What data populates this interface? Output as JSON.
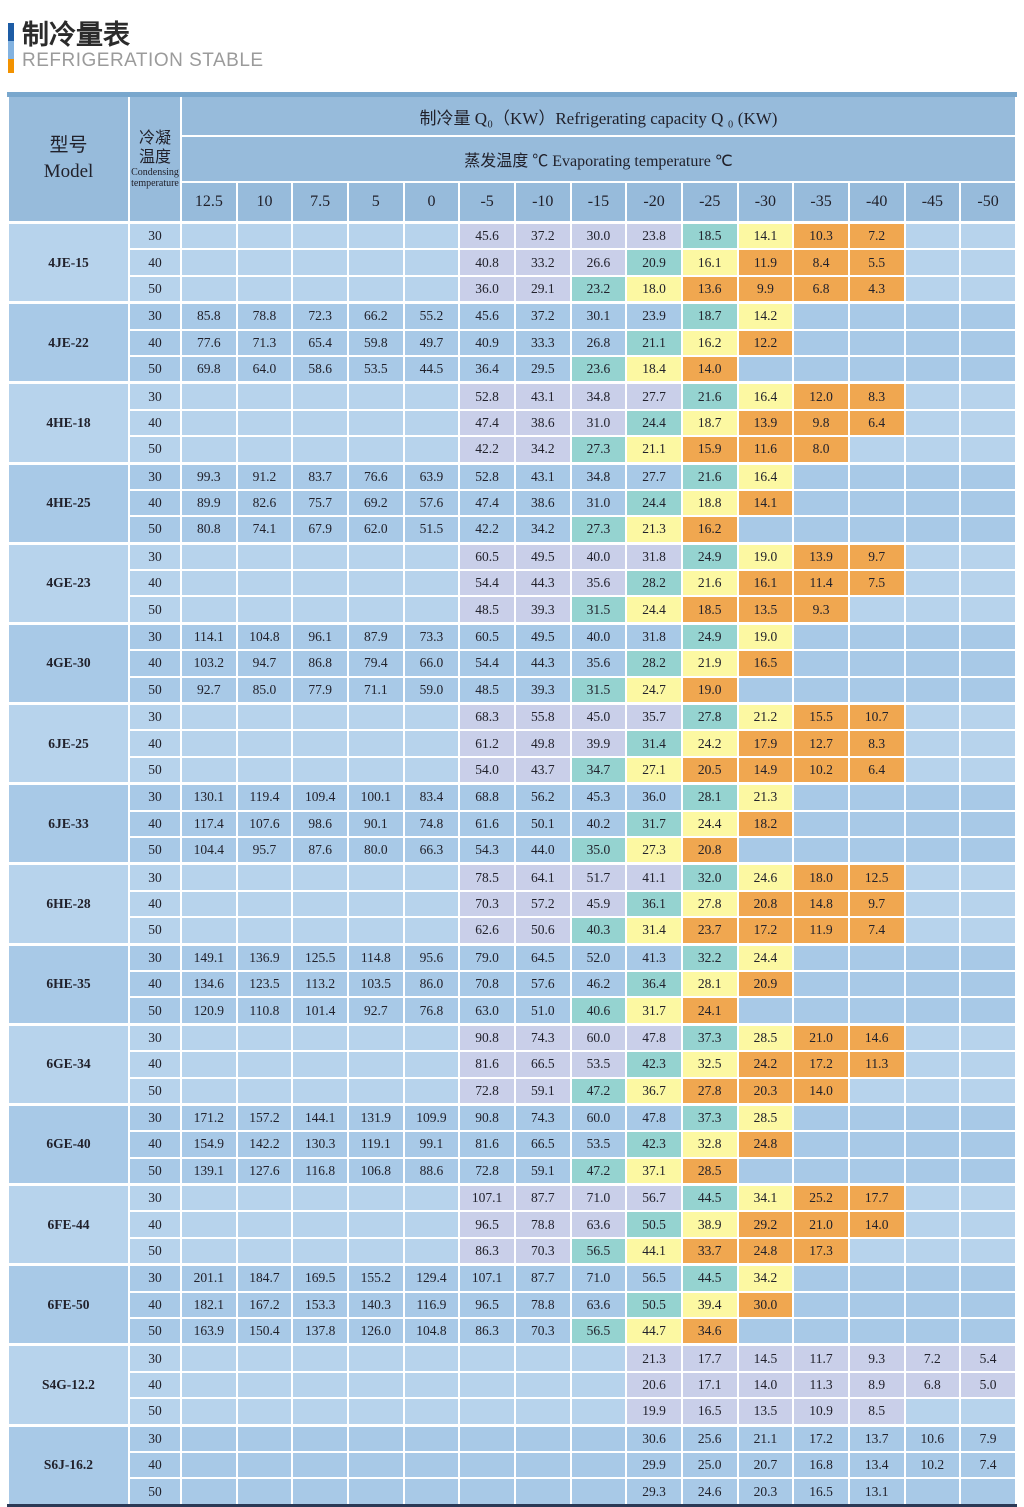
{
  "page": {
    "title": "制冷量表",
    "subtitle": "REFRIGERATION STABLE"
  },
  "colors": {
    "header_blue": "#97bbdb",
    "evaporating_row_blue": "#cde9f8",
    "top_strip_blue": "#79a7cd",
    "group_base_light": "#b7d3ec",
    "group_base_dark": "#a8c9e7",
    "band_lavender": "#c9cfe9",
    "band_teal": "#95d3d0",
    "band_yellow": "#fcf8a2",
    "band_orange": "#f0a750",
    "accent_dark_blue": "#1d5ca5",
    "accent_light_blue": "#82b2e0",
    "accent_orange": "#f29200"
  },
  "table": {
    "header": {
      "model_zh": "型号",
      "model_en": "Model",
      "cond_zh_line1": "冷凝",
      "cond_zh_line2": "温度",
      "cond_en_line1": "Condensing",
      "cond_en_line2": "temperature",
      "capacity_title": "制冷量 Q₀（KW）Refrigerating capacity Q ₀ (KW)",
      "evap_title": "蒸发温度 ℃ Evaporating temperature ℃",
      "temp_columns": [
        "12.5",
        "10",
        "7.5",
        "5",
        "0",
        "-5",
        "-10",
        "-15",
        "-20",
        "-25",
        "-30",
        "-35",
        "-40",
        "-45",
        "-50"
      ]
    },
    "cond_values": [
      "30",
      "40",
      "50"
    ],
    "models": [
      {
        "name": "4JE-15",
        "shade": "light",
        "heat": true,
        "rows": [
          [
            "",
            "",
            "",
            "",
            "",
            "45.6",
            "37.2",
            "30.0",
            "23.8",
            "18.5",
            "14.1",
            "10.3",
            "7.2",
            "",
            ""
          ],
          [
            "",
            "",
            "",
            "",
            "",
            "40.8",
            "33.2",
            "26.6",
            "20.9",
            "16.1",
            "11.9",
            "8.4",
            "5.5",
            "",
            ""
          ],
          [
            "",
            "",
            "",
            "",
            "",
            "36.0",
            "29.1",
            "23.2",
            "18.0",
            "13.6",
            "9.9",
            "6.8",
            "4.3",
            "",
            ""
          ]
        ]
      },
      {
        "name": "4JE-22",
        "shade": "dark",
        "heat": true,
        "rows": [
          [
            "85.8",
            "78.8",
            "72.3",
            "66.2",
            "55.2",
            "45.6",
            "37.2",
            "30.1",
            "23.9",
            "18.7",
            "14.2",
            "",
            "",
            "",
            ""
          ],
          [
            "77.6",
            "71.3",
            "65.4",
            "59.8",
            "49.7",
            "40.9",
            "33.3",
            "26.8",
            "21.1",
            "16.2",
            "12.2",
            "",
            "",
            "",
            ""
          ],
          [
            "69.8",
            "64.0",
            "58.6",
            "53.5",
            "44.5",
            "36.4",
            "29.5",
            "23.6",
            "18.4",
            "14.0",
            "",
            "",
            "",
            "",
            ""
          ]
        ]
      },
      {
        "name": "4HE-18",
        "shade": "light",
        "heat": true,
        "rows": [
          [
            "",
            "",
            "",
            "",
            "",
            "52.8",
            "43.1",
            "34.8",
            "27.7",
            "21.6",
            "16.4",
            "12.0",
            "8.3",
            "",
            ""
          ],
          [
            "",
            "",
            "",
            "",
            "",
            "47.4",
            "38.6",
            "31.0",
            "24.4",
            "18.7",
            "13.9",
            "9.8",
            "6.4",
            "",
            ""
          ],
          [
            "",
            "",
            "",
            "",
            "",
            "42.2",
            "34.2",
            "27.3",
            "21.1",
            "15.9",
            "11.6",
            "8.0",
            "",
            "",
            ""
          ]
        ]
      },
      {
        "name": "4HE-25",
        "shade": "dark",
        "heat": true,
        "rows": [
          [
            "99.3",
            "91.2",
            "83.7",
            "76.6",
            "63.9",
            "52.8",
            "43.1",
            "34.8",
            "27.7",
            "21.6",
            "16.4",
            "",
            "",
            "",
            ""
          ],
          [
            "89.9",
            "82.6",
            "75.7",
            "69.2",
            "57.6",
            "47.4",
            "38.6",
            "31.0",
            "24.4",
            "18.8",
            "14.1",
            "",
            "",
            "",
            ""
          ],
          [
            "80.8",
            "74.1",
            "67.9",
            "62.0",
            "51.5",
            "42.2",
            "34.2",
            "27.3",
            "21.3",
            "16.2",
            "",
            "",
            "",
            "",
            ""
          ]
        ]
      },
      {
        "name": "4GE-23",
        "shade": "light",
        "heat": true,
        "rows": [
          [
            "",
            "",
            "",
            "",
            "",
            "60.5",
            "49.5",
            "40.0",
            "31.8",
            "24.9",
            "19.0",
            "13.9",
            "9.7",
            "",
            ""
          ],
          [
            "",
            "",
            "",
            "",
            "",
            "54.4",
            "44.3",
            "35.6",
            "28.2",
            "21.6",
            "16.1",
            "11.4",
            "7.5",
            "",
            ""
          ],
          [
            "",
            "",
            "",
            "",
            "",
            "48.5",
            "39.3",
            "31.5",
            "24.4",
            "18.5",
            "13.5",
            "9.3",
            "",
            "",
            ""
          ]
        ]
      },
      {
        "name": "4GE-30",
        "shade": "dark",
        "heat": true,
        "rows": [
          [
            "114.1",
            "104.8",
            "96.1",
            "87.9",
            "73.3",
            "60.5",
            "49.5",
            "40.0",
            "31.8",
            "24.9",
            "19.0",
            "",
            "",
            "",
            ""
          ],
          [
            "103.2",
            "94.7",
            "86.8",
            "79.4",
            "66.0",
            "54.4",
            "44.3",
            "35.6",
            "28.2",
            "21.9",
            "16.5",
            "",
            "",
            "",
            ""
          ],
          [
            "92.7",
            "85.0",
            "77.9",
            "71.1",
            "59.0",
            "48.5",
            "39.3",
            "31.5",
            "24.7",
            "19.0",
            "",
            "",
            "",
            "",
            ""
          ]
        ]
      },
      {
        "name": "6JE-25",
        "shade": "light",
        "heat": true,
        "rows": [
          [
            "",
            "",
            "",
            "",
            "",
            "68.3",
            "55.8",
            "45.0",
            "35.7",
            "27.8",
            "21.2",
            "15.5",
            "10.7",
            "",
            ""
          ],
          [
            "",
            "",
            "",
            "",
            "",
            "61.2",
            "49.8",
            "39.9",
            "31.4",
            "24.2",
            "17.9",
            "12.7",
            "8.3",
            "",
            ""
          ],
          [
            "",
            "",
            "",
            "",
            "",
            "54.0",
            "43.7",
            "34.7",
            "27.1",
            "20.5",
            "14.9",
            "10.2",
            "6.4",
            "",
            ""
          ]
        ]
      },
      {
        "name": "6JE-33",
        "shade": "dark",
        "heat": true,
        "rows": [
          [
            "130.1",
            "119.4",
            "109.4",
            "100.1",
            "83.4",
            "68.8",
            "56.2",
            "45.3",
            "36.0",
            "28.1",
            "21.3",
            "",
            "",
            "",
            ""
          ],
          [
            "117.4",
            "107.6",
            "98.6",
            "90.1",
            "74.8",
            "61.6",
            "50.1",
            "40.2",
            "31.7",
            "24.4",
            "18.2",
            "",
            "",
            "",
            ""
          ],
          [
            "104.4",
            "95.7",
            "87.6",
            "80.0",
            "66.3",
            "54.3",
            "44.0",
            "35.0",
            "27.3",
            "20.8",
            "",
            "",
            "",
            "",
            ""
          ]
        ]
      },
      {
        "name": "6HE-28",
        "shade": "light",
        "heat": true,
        "rows": [
          [
            "",
            "",
            "",
            "",
            "",
            "78.5",
            "64.1",
            "51.7",
            "41.1",
            "32.0",
            "24.6",
            "18.0",
            "12.5",
            "",
            ""
          ],
          [
            "",
            "",
            "",
            "",
            "",
            "70.3",
            "57.2",
            "45.9",
            "36.1",
            "27.8",
            "20.8",
            "14.8",
            "9.7",
            "",
            ""
          ],
          [
            "",
            "",
            "",
            "",
            "",
            "62.6",
            "50.6",
            "40.3",
            "31.4",
            "23.7",
            "17.2",
            "11.9",
            "7.4",
            "",
            ""
          ]
        ]
      },
      {
        "name": "6HE-35",
        "shade": "dark",
        "heat": true,
        "rows": [
          [
            "149.1",
            "136.9",
            "125.5",
            "114.8",
            "95.6",
            "79.0",
            "64.5",
            "52.0",
            "41.3",
            "32.2",
            "24.4",
            "",
            "",
            "",
            ""
          ],
          [
            "134.6",
            "123.5",
            "113.2",
            "103.5",
            "86.0",
            "70.8",
            "57.6",
            "46.2",
            "36.4",
            "28.1",
            "20.9",
            "",
            "",
            "",
            ""
          ],
          [
            "120.9",
            "110.8",
            "101.4",
            "92.7",
            "76.8",
            "63.0",
            "51.0",
            "40.6",
            "31.7",
            "24.1",
            "",
            "",
            "",
            "",
            ""
          ]
        ]
      },
      {
        "name": "6GE-34",
        "shade": "light",
        "heat": true,
        "rows": [
          [
            "",
            "",
            "",
            "",
            "",
            "90.8",
            "74.3",
            "60.0",
            "47.8",
            "37.3",
            "28.5",
            "21.0",
            "14.6",
            "",
            ""
          ],
          [
            "",
            "",
            "",
            "",
            "",
            "81.6",
            "66.5",
            "53.5",
            "42.3",
            "32.5",
            "24.2",
            "17.2",
            "11.3",
            "",
            ""
          ],
          [
            "",
            "",
            "",
            "",
            "",
            "72.8",
            "59.1",
            "47.2",
            "36.7",
            "27.8",
            "20.3",
            "14.0",
            "",
            "",
            ""
          ]
        ]
      },
      {
        "name": "6GE-40",
        "shade": "dark",
        "heat": true,
        "rows": [
          [
            "171.2",
            "157.2",
            "144.1",
            "131.9",
            "109.9",
            "90.8",
            "74.3",
            "60.0",
            "47.8",
            "37.3",
            "28.5",
            "",
            "",
            "",
            ""
          ],
          [
            "154.9",
            "142.2",
            "130.3",
            "119.1",
            "99.1",
            "81.6",
            "66.5",
            "53.5",
            "42.3",
            "32.8",
            "24.8",
            "",
            "",
            "",
            ""
          ],
          [
            "139.1",
            "127.6",
            "116.8",
            "106.8",
            "88.6",
            "72.8",
            "59.1",
            "47.2",
            "37.1",
            "28.5",
            "",
            "",
            "",
            "",
            ""
          ]
        ]
      },
      {
        "name": "6FE-44",
        "shade": "light",
        "heat": true,
        "rows": [
          [
            "",
            "",
            "",
            "",
            "",
            "107.1",
            "87.7",
            "71.0",
            "56.7",
            "44.5",
            "34.1",
            "25.2",
            "17.7",
            "",
            ""
          ],
          [
            "",
            "",
            "",
            "",
            "",
            "96.5",
            "78.8",
            "63.6",
            "50.5",
            "38.9",
            "29.2",
            "21.0",
            "14.0",
            "",
            ""
          ],
          [
            "",
            "",
            "",
            "",
            "",
            "86.3",
            "70.3",
            "56.5",
            "44.1",
            "33.7",
            "24.8",
            "17.3",
            "",
            "",
            ""
          ]
        ]
      },
      {
        "name": "6FE-50",
        "shade": "dark",
        "heat": true,
        "rows": [
          [
            "201.1",
            "184.7",
            "169.5",
            "155.2",
            "129.4",
            "107.1",
            "87.7",
            "71.0",
            "56.5",
            "44.5",
            "34.2",
            "",
            "",
            "",
            ""
          ],
          [
            "182.1",
            "167.2",
            "153.3",
            "140.3",
            "116.9",
            "96.5",
            "78.8",
            "63.6",
            "50.5",
            "39.4",
            "30.0",
            "",
            "",
            "",
            ""
          ],
          [
            "163.9",
            "150.4",
            "137.8",
            "126.0",
            "104.8",
            "86.3",
            "70.3",
            "56.5",
            "44.7",
            "34.6",
            "",
            "",
            "",
            "",
            ""
          ]
        ]
      },
      {
        "name": "S4G-12.2",
        "shade": "light",
        "heat": false,
        "rows": [
          [
            "",
            "",
            "",
            "",
            "",
            "",
            "",
            "",
            "21.3",
            "17.7",
            "14.5",
            "11.7",
            "9.3",
            "7.2",
            "5.4"
          ],
          [
            "",
            "",
            "",
            "",
            "",
            "",
            "",
            "",
            "20.6",
            "17.1",
            "14.0",
            "11.3",
            "8.9",
            "6.8",
            "5.0"
          ],
          [
            "",
            "",
            "",
            "",
            "",
            "",
            "",
            "",
            "19.9",
            "16.5",
            "13.5",
            "10.9",
            "8.5",
            "",
            ""
          ]
        ]
      },
      {
        "name": "S6J-16.2",
        "shade": "dark",
        "heat": false,
        "rows": [
          [
            "",
            "",
            "",
            "",
            "",
            "",
            "",
            "",
            "30.6",
            "25.6",
            "21.1",
            "17.2",
            "13.7",
            "10.6",
            "7.9"
          ],
          [
            "",
            "",
            "",
            "",
            "",
            "",
            "",
            "",
            "29.9",
            "25.0",
            "20.7",
            "16.8",
            "13.4",
            "10.2",
            "7.4"
          ],
          [
            "",
            "",
            "",
            "",
            "",
            "",
            "",
            "",
            "29.3",
            "24.6",
            "20.3",
            "16.5",
            "13.1",
            "",
            ""
          ]
        ]
      }
    ]
  }
}
